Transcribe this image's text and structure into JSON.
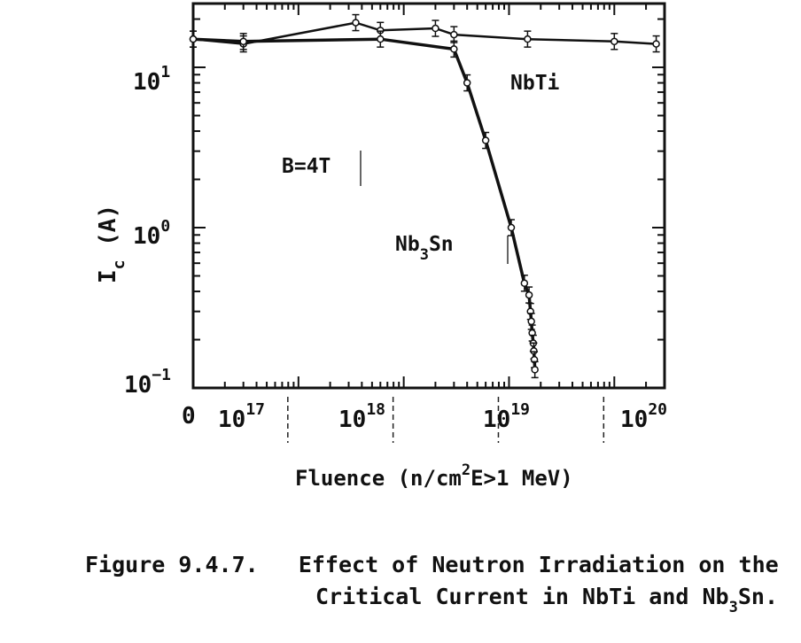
{
  "chart_data": {
    "type": "line",
    "x_scale": "log",
    "y_scale": "log",
    "xlabel": "Fluence (n/cm²E>1 MeV)",
    "ylabel": "I_c (A)",
    "x_ticks": [
      "0",
      "10^17",
      "10^18",
      "10^19",
      "10^20"
    ],
    "y_ticks": [
      "10^1",
      "10^0",
      "10^-1"
    ],
    "xlim": [
      1e+16,
      3e+20
    ],
    "ylim": [
      0.1,
      25
    ],
    "annotation": "B=4T",
    "series": [
      {
        "name": "NbTi",
        "x": [
          1e+16,
          3e+16,
          3.5e+17,
          6e+17,
          2e+18,
          3e+18,
          1.5e+19,
          1e+20,
          2.5e+20
        ],
        "y": [
          15,
          14,
          19,
          17,
          17.5,
          16,
          15,
          14.5,
          14
        ]
      },
      {
        "name": "Nb3Sn",
        "x": [
          1e+16,
          3e+16,
          6e+17,
          3e+18,
          4e+18,
          6e+18,
          1.05e+19,
          1.4e+19,
          1.55e+19,
          1.6e+19,
          1.63e+19,
          1.66e+19,
          1.7e+19,
          1.72e+19,
          1.74e+19,
          1.76e+19
        ],
        "y": [
          15,
          14.5,
          15,
          13,
          8,
          3.5,
          1.0,
          0.45,
          0.38,
          0.3,
          0.26,
          0.22,
          0.19,
          0.17,
          0.15,
          0.13
        ]
      }
    ]
  },
  "caption": {
    "line1_prefix": "Figure 9.4.7.",
    "line1_text": "Effect of Neutron Irradiation on the",
    "line2_text": "Critical Current in NbTi and Nb",
    "line2_sub": "3",
    "line2_end": "Sn."
  }
}
